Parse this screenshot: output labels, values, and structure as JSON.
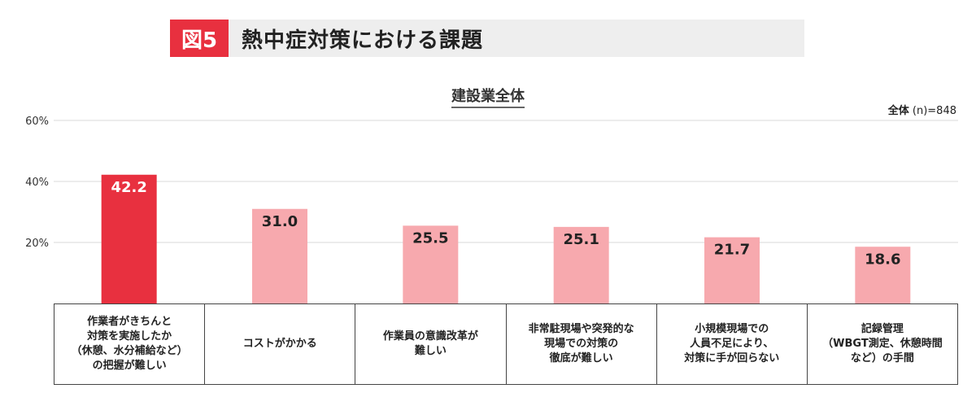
{
  "header": {
    "badge": "図5",
    "title": "熱中症対策における課題"
  },
  "chart_data": {
    "type": "bar",
    "title": "建設業全体",
    "sample_label": "全体",
    "sample_n": "(n)=848",
    "categories": [
      "作業者がきちんと\n対策を実施したか\n（休憩、水分補給など）\nの把握が難しい",
      "コストがかかる",
      "作業員の意識改革が\n難しい",
      "非常駐現場や突発的な\n現場での対策の\n徹底が難しい",
      "小規模現場での\n人員不足により、\n対策に手が回らない",
      "記録管理\n（WBGT測定、休憩時間\nなど）の手間"
    ],
    "values": [
      42.2,
      31.0,
      25.5,
      25.1,
      21.7,
      18.6
    ],
    "value_labels": [
      "42.2",
      "31.0",
      "25.5",
      "25.1",
      "21.7",
      "18.6"
    ],
    "ylim": [
      0,
      60
    ],
    "yticks": [
      20,
      40,
      60
    ],
    "ytick_labels": [
      "20%",
      "40%",
      "60%"
    ],
    "grid": true,
    "colors": {
      "highlight": "#e8303f",
      "normal": "#f7a9ae",
      "grid": "#d9d9d9"
    }
  }
}
